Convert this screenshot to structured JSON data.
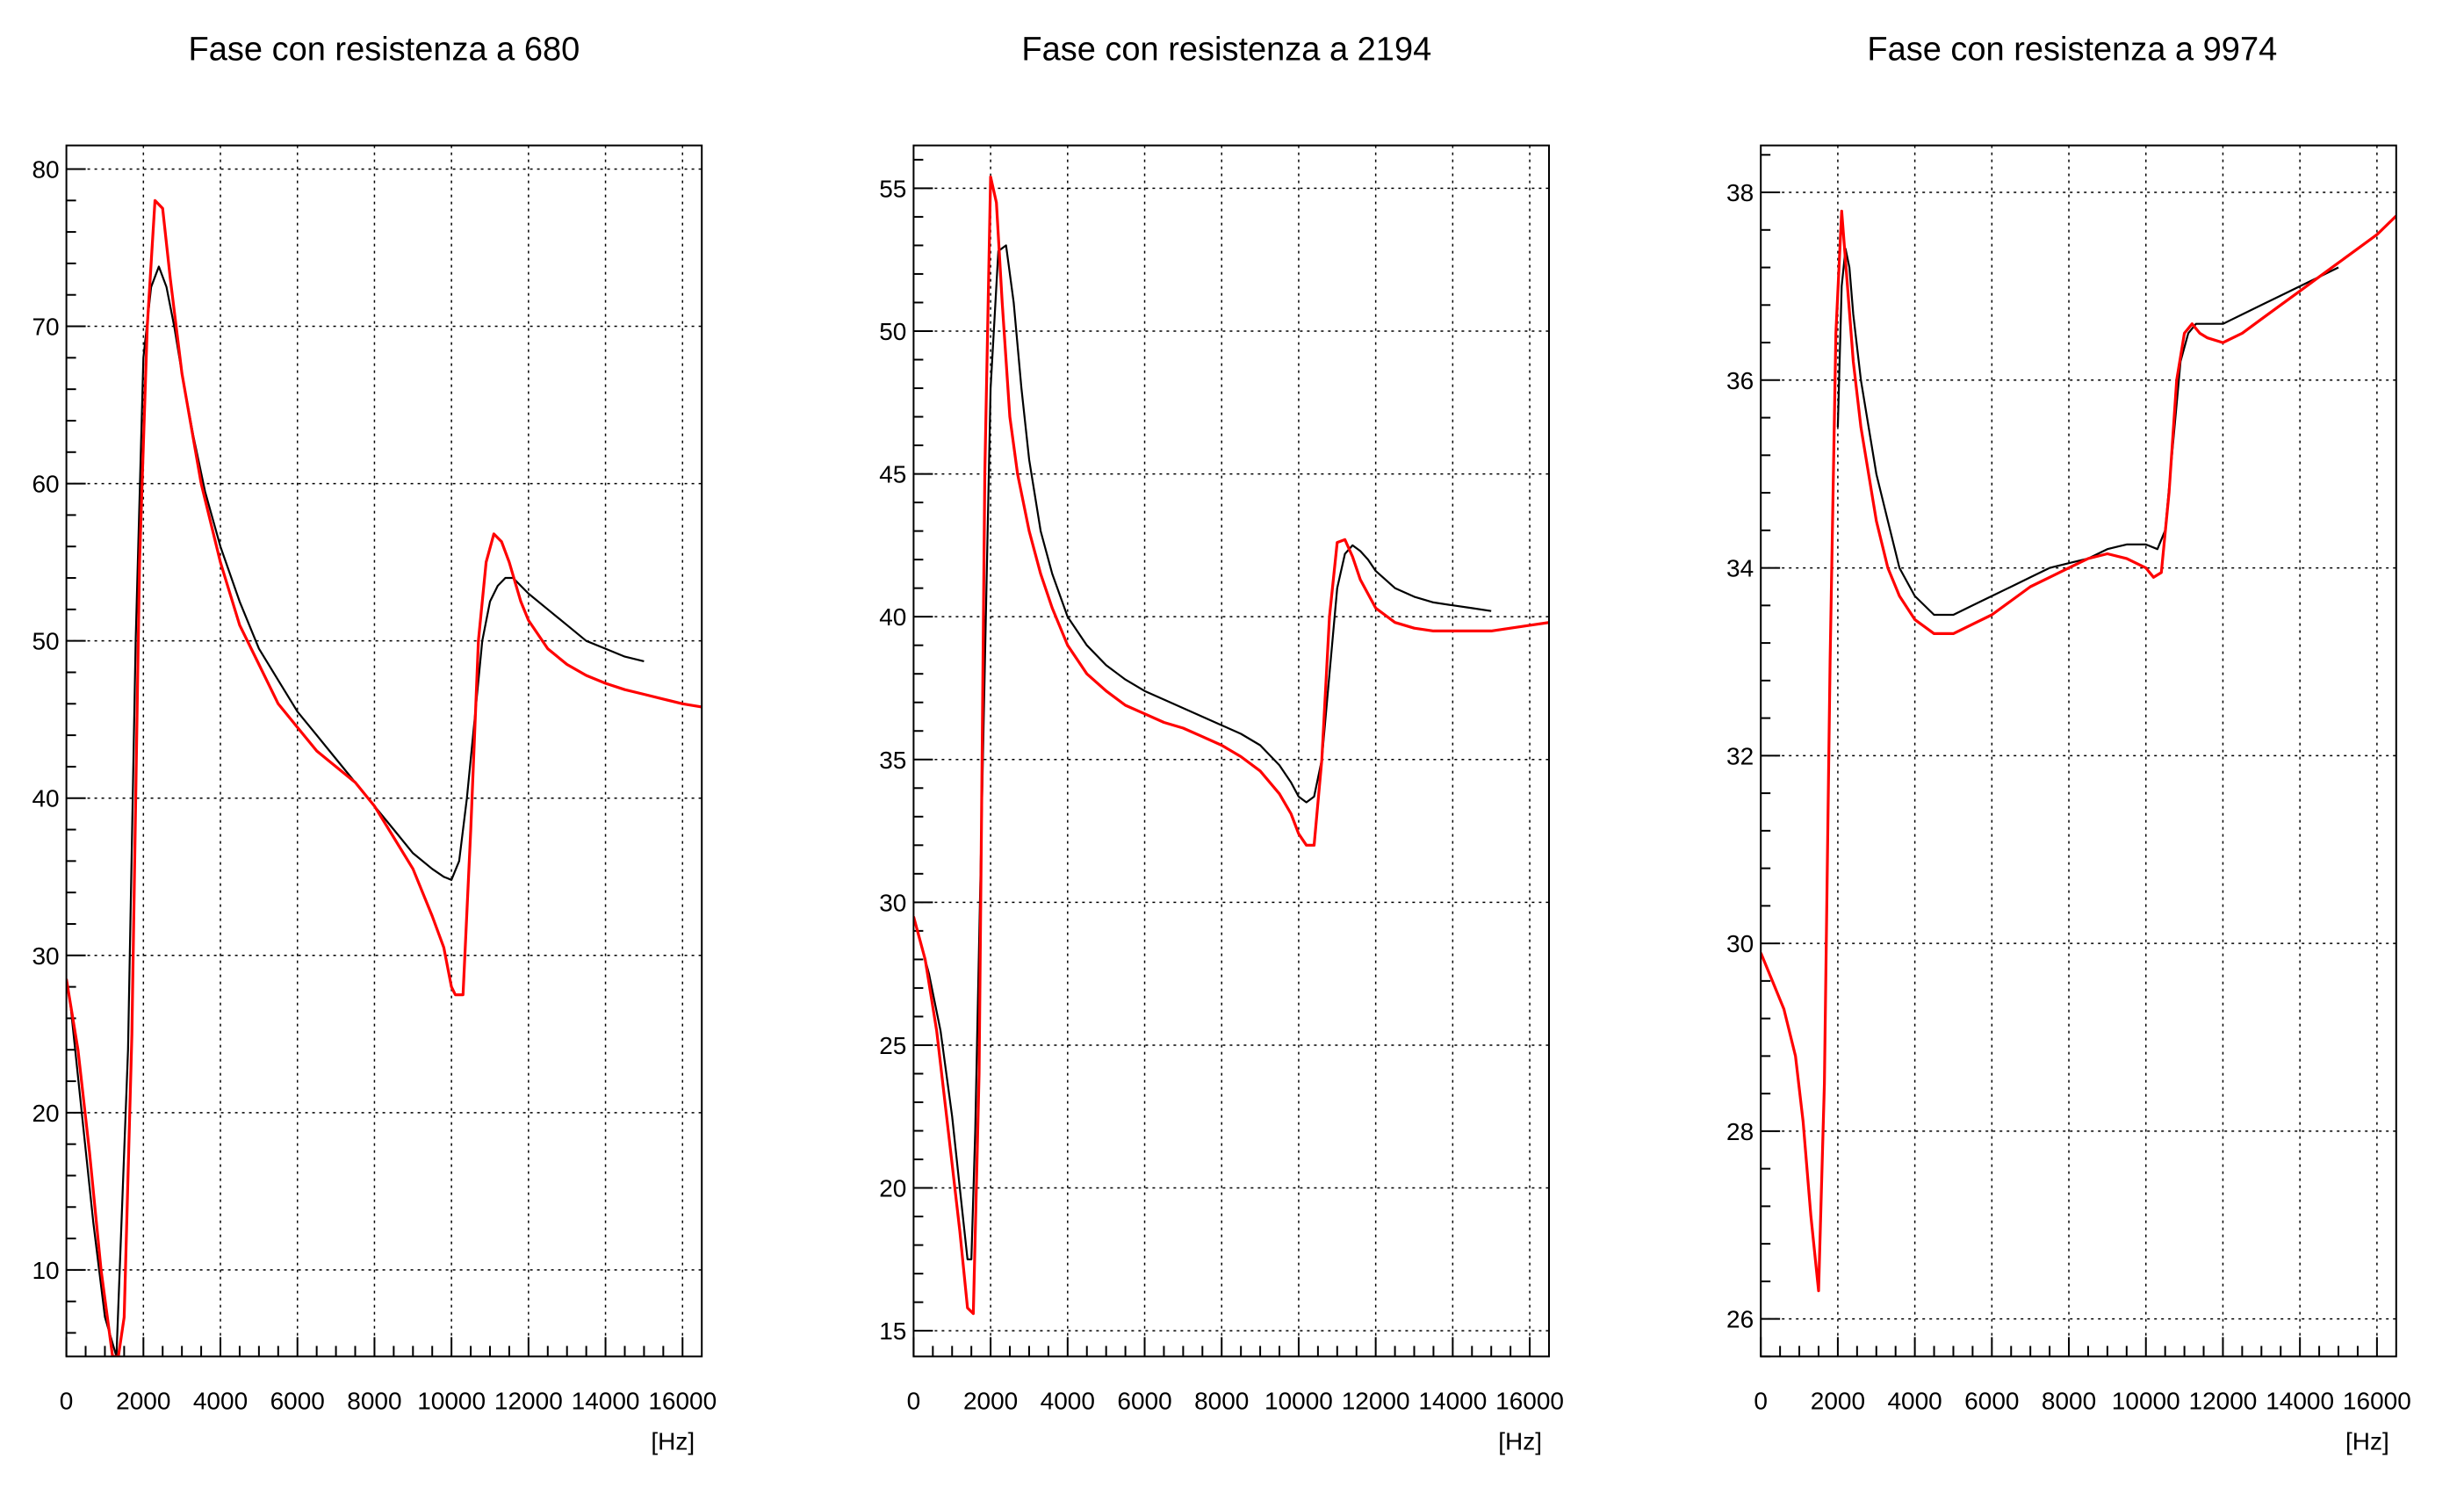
{
  "chart_data": [
    {
      "type": "line",
      "title": "Fase con resistenza a 680",
      "xlabel": "[Hz]",
      "ylabel": "",
      "xlim": [
        0,
        16500
      ],
      "ylim": [
        4.5,
        81.5
      ],
      "xticks": [
        "0",
        "2000",
        "4000",
        "6000",
        "8000",
        "10000",
        "12000",
        "14000",
        "16000"
      ],
      "yticks": [
        "10",
        "20",
        "30",
        "40",
        "50",
        "60",
        "70",
        "80"
      ],
      "grid": true,
      "series": [
        {
          "color": "#000000",
          "x": [
            100,
            400,
            700,
            1000,
            1300,
            1600,
            1800,
            2000,
            2200,
            2400,
            2600,
            2800,
            3000,
            3300,
            3600,
            4000,
            4500,
            5000,
            5500,
            6000,
            6500,
            7000,
            7500,
            8000,
            8500,
            9000,
            9500,
            9800,
            10000,
            10200,
            10400,
            10600,
            10800,
            11000,
            11200,
            11400,
            11600,
            11800,
            12000,
            12500,
            13000,
            13500,
            14000,
            14500,
            15000
          ],
          "y": [
            27,
            20,
            13,
            7,
            4.5,
            24,
            50,
            68,
            72.5,
            73.8,
            72.5,
            70,
            67,
            63,
            59.5,
            56,
            52.5,
            49.5,
            47.5,
            45.5,
            44,
            42.5,
            41,
            39.5,
            38,
            36.5,
            35.5,
            35,
            34.8,
            36,
            40,
            45,
            50,
            52.5,
            53.5,
            54,
            54,
            53.5,
            53,
            52,
            51,
            50,
            49.5,
            49,
            48.7
          ]
        },
        {
          "color": "#ff0000",
          "x": [
            0,
            300,
            600,
            900,
            1200,
            1350,
            1500,
            1700,
            1900,
            2100,
            2300,
            2500,
            2700,
            3000,
            3500,
            4000,
            4500,
            5000,
            5500,
            6000,
            6500,
            7000,
            7500,
            8000,
            8500,
            9000,
            9500,
            9800,
            10000,
            10100,
            10300,
            10500,
            10700,
            10900,
            11100,
            11300,
            11500,
            11800,
            12000,
            12500,
            13000,
            13500,
            14000,
            14500,
            15000,
            15500,
            16000,
            16500
          ],
          "y": [
            28.5,
            24,
            17.5,
            10,
            4.5,
            4.5,
            7,
            25,
            55,
            70,
            78,
            77.5,
            73,
            67,
            60,
            55,
            51,
            48.5,
            46,
            44.5,
            43,
            42,
            41,
            39.5,
            37.5,
            35.5,
            32.5,
            30.5,
            28,
            27.5,
            27.5,
            38,
            50,
            55,
            56.8,
            56.3,
            55,
            52.5,
            51.3,
            49.5,
            48.5,
            47.8,
            47.3,
            46.9,
            46.6,
            46.3,
            46,
            45.8
          ]
        }
      ]
    },
    {
      "type": "line",
      "title": "Fase con resistenza a 2194",
      "xlabel": "[Hz]",
      "ylabel": "",
      "xlim": [
        0,
        16500
      ],
      "ylim": [
        14.1,
        56.5
      ],
      "xticks": [
        "0",
        "2000",
        "4000",
        "6000",
        "8000",
        "10000",
        "12000",
        "14000",
        "16000"
      ],
      "yticks": [
        "15",
        "20",
        "25",
        "30",
        "35",
        "40",
        "45",
        "50",
        "55"
      ],
      "grid": true,
      "series": [
        {
          "color": "#000000",
          "x": [
            100,
            400,
            700,
            1000,
            1200,
            1400,
            1500,
            1600,
            1800,
            2000,
            2200,
            2400,
            2600,
            2800,
            3000,
            3300,
            3600,
            4000,
            4500,
            5000,
            5500,
            6000,
            6500,
            7000,
            7500,
            8000,
            8500,
            9000,
            9500,
            9800,
            10000,
            10200,
            10400,
            10600,
            10800,
            11000,
            11200,
            11400,
            11600,
            11800,
            12000,
            12500,
            13000,
            13500,
            14000,
            14500,
            15000
          ],
          "y": [
            29,
            27.5,
            25.5,
            22.5,
            20,
            17.5,
            17.5,
            22,
            35,
            48,
            52.8,
            53,
            51,
            48,
            45.5,
            43,
            41.5,
            40,
            39,
            38.3,
            37.8,
            37.4,
            37.1,
            36.8,
            36.5,
            36.2,
            35.9,
            35.5,
            34.8,
            34.2,
            33.7,
            33.5,
            33.7,
            35,
            38,
            41,
            42.2,
            42.5,
            42.3,
            42,
            41.6,
            41,
            40.7,
            40.5,
            40.4,
            40.3,
            40.2
          ]
        },
        {
          "color": "#ff0000",
          "x": [
            0,
            300,
            600,
            900,
            1200,
            1400,
            1550,
            1700,
            1850,
            2000,
            2150,
            2300,
            2500,
            2700,
            3000,
            3300,
            3600,
            4000,
            4500,
            5000,
            5500,
            6000,
            6500,
            7000,
            7500,
            8000,
            8500,
            9000,
            9500,
            9800,
            10000,
            10200,
            10400,
            10600,
            10800,
            11000,
            11200,
            11400,
            11600,
            11800,
            12000,
            12500,
            13000,
            13500,
            14000,
            14500,
            15000,
            15500,
            16000,
            16500
          ],
          "y": [
            29.5,
            28,
            25.5,
            22,
            18.5,
            15.8,
            15.6,
            24,
            45,
            55.4,
            54.5,
            51,
            47,
            45,
            43,
            41.5,
            40.3,
            39,
            38,
            37.4,
            36.9,
            36.6,
            36.3,
            36.1,
            35.8,
            35.5,
            35.1,
            34.6,
            33.8,
            33.1,
            32.4,
            32,
            32,
            35,
            40,
            42.6,
            42.7,
            42.1,
            41.3,
            40.8,
            40.3,
            39.8,
            39.6,
            39.5,
            39.5,
            39.5,
            39.5,
            39.6,
            39.7,
            39.8
          ]
        }
      ]
    },
    {
      "type": "line",
      "title": "Fase con resistenza a 9974",
      "xlabel": "[Hz]",
      "ylabel": "",
      "xlim": [
        0,
        16500
      ],
      "ylim": [
        25.6,
        38.5
      ],
      "xticks": [
        "0",
        "2000",
        "4000",
        "6000",
        "8000",
        "10000",
        "12000",
        "14000",
        "16000"
      ],
      "yticks": [
        "26",
        "28",
        "30",
        "32",
        "34",
        "36",
        "38"
      ],
      "grid": true,
      "series": [
        {
          "color": "#000000",
          "x": [
            2000,
            2100,
            2200,
            2300,
            2400,
            2600,
            2800,
            3000,
            3300,
            3600,
            4000,
            4500,
            5000,
            5500,
            6000,
            6500,
            7000,
            7500,
            8000,
            8500,
            9000,
            9500,
            10000,
            10300,
            10500,
            10700,
            10900,
            11100,
            11300,
            11600,
            12000,
            12500,
            13000,
            13500,
            14000,
            14500,
            15000
          ],
          "y": [
            35.5,
            37,
            37.4,
            37.2,
            36.7,
            36,
            35.5,
            35,
            34.5,
            34,
            33.7,
            33.5,
            33.5,
            33.6,
            33.7,
            33.8,
            33.9,
            34,
            34.05,
            34.1,
            34.2,
            34.25,
            34.25,
            34.2,
            34.4,
            35.3,
            36.2,
            36.5,
            36.6,
            36.6,
            36.6,
            36.7,
            36.8,
            36.9,
            37,
            37.1,
            37.2
          ]
        },
        {
          "color": "#ff0000",
          "x": [
            0,
            300,
            600,
            900,
            1100,
            1300,
            1500,
            1650,
            1800,
            1950,
            2100,
            2250,
            2400,
            2600,
            2800,
            3000,
            3300,
            3600,
            4000,
            4500,
            5000,
            5500,
            6000,
            6500,
            7000,
            7500,
            8000,
            8500,
            9000,
            9500,
            10000,
            10200,
            10400,
            10600,
            10800,
            11000,
            11200,
            11400,
            11600,
            12000,
            12500,
            13000,
            13500,
            14000,
            14500,
            15000,
            15500,
            16000,
            16500
          ],
          "y": [
            29.9,
            29.6,
            29.3,
            28.8,
            28.1,
            27.1,
            26.3,
            28.5,
            33,
            36.5,
            37.8,
            37,
            36.2,
            35.5,
            35,
            34.5,
            34,
            33.7,
            33.45,
            33.3,
            33.3,
            33.4,
            33.5,
            33.65,
            33.8,
            33.9,
            34,
            34.1,
            34.15,
            34.1,
            34,
            33.9,
            33.95,
            34.8,
            36,
            36.5,
            36.6,
            36.5,
            36.45,
            36.4,
            36.5,
            36.65,
            36.8,
            36.95,
            37.1,
            37.25,
            37.4,
            37.55,
            37.75
          ]
        }
      ]
    }
  ]
}
